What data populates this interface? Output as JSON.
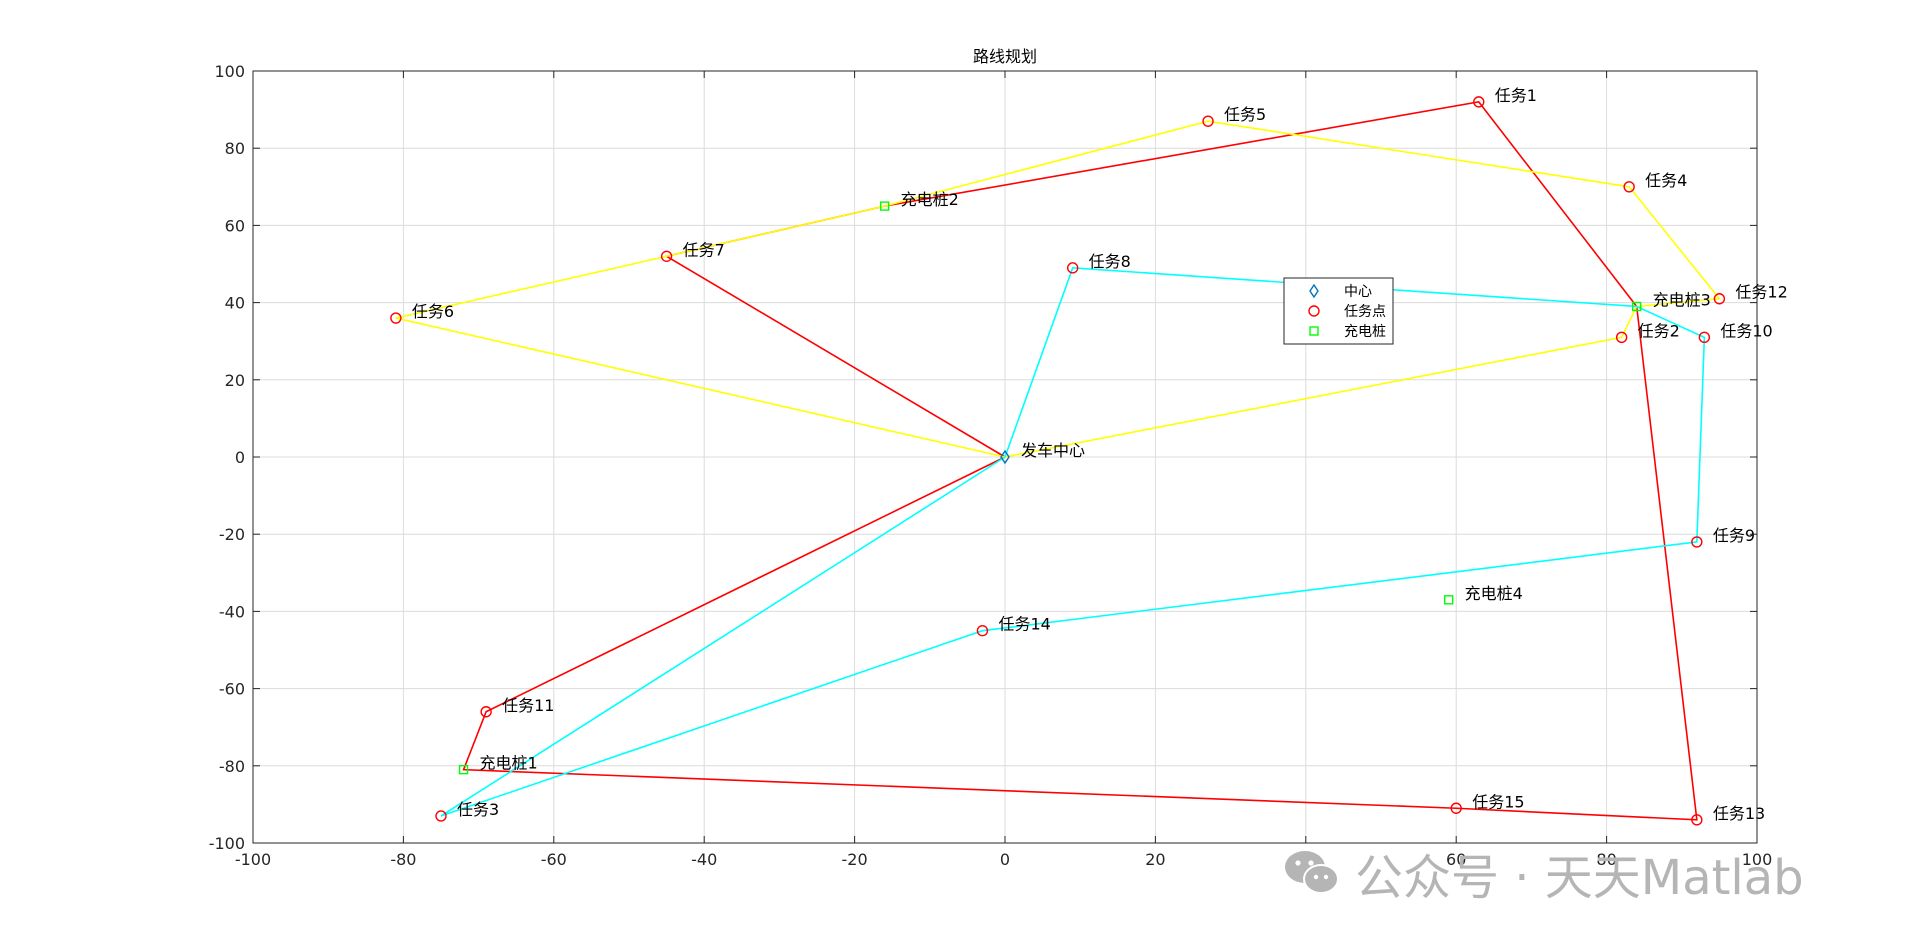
{
  "chart_data": {
    "type": "scatter",
    "title": "路线规划",
    "xlabel": "",
    "ylabel": "",
    "xlim": [
      -100,
      100
    ],
    "ylim": [
      -100,
      100
    ],
    "x_ticks": [
      -100,
      -80,
      -60,
      -40,
      -20,
      0,
      20,
      40,
      60,
      80,
      100
    ],
    "y_ticks": [
      -100,
      -80,
      -60,
      -40,
      -20,
      0,
      20,
      40,
      60,
      80,
      100
    ],
    "grid": true,
    "legend": {
      "placement": "center-right",
      "entries": [
        {
          "label": "中心",
          "marker": "diamond",
          "color": "#0072BD"
        },
        {
          "label": "任务点",
          "marker": "circle",
          "color": "#FF0000"
        },
        {
          "label": "充电桩",
          "marker": "square",
          "color": "#00FF00"
        }
      ]
    },
    "center": {
      "label": "发车中心",
      "x": 0,
      "y": 0
    },
    "tasks": [
      {
        "label": "任务1",
        "x": 63,
        "y": 92
      },
      {
        "label": "任务2",
        "x": 82,
        "y": 31
      },
      {
        "label": "任务3",
        "x": -75,
        "y": -93
      },
      {
        "label": "任务4",
        "x": 83,
        "y": 70
      },
      {
        "label": "任务5",
        "x": 27,
        "y": 87
      },
      {
        "label": "任务6",
        "x": -81,
        "y": 36
      },
      {
        "label": "任务7",
        "x": -45,
        "y": 52
      },
      {
        "label": "任务8",
        "x": 9,
        "y": 49
      },
      {
        "label": "任务9",
        "x": 92,
        "y": -22
      },
      {
        "label": "任务10",
        "x": 93,
        "y": 31
      },
      {
        "label": "任务11",
        "x": -69,
        "y": -66
      },
      {
        "label": "任务12",
        "x": 95,
        "y": 41
      },
      {
        "label": "任务13",
        "x": 92,
        "y": -94
      },
      {
        "label": "任务14",
        "x": -3,
        "y": -45
      },
      {
        "label": "任务15",
        "x": 60,
        "y": -91
      }
    ],
    "chargers": [
      {
        "label": "充电桩1",
        "x": -72,
        "y": -81
      },
      {
        "label": "充电桩2",
        "x": -16,
        "y": 65
      },
      {
        "label": "充电桩3",
        "x": 84,
        "y": 39
      },
      {
        "label": "充电桩4",
        "x": 59,
        "y": -37
      }
    ],
    "routes": [
      {
        "color": "#FF0000",
        "points": [
          [
            0,
            0
          ],
          [
            -69,
            -66
          ],
          [
            -72,
            -81
          ],
          [
            60,
            -91
          ],
          [
            92,
            -94
          ],
          [
            84,
            39
          ],
          [
            63,
            92
          ],
          [
            -16,
            65
          ],
          [
            -45,
            52
          ],
          [
            0,
            0
          ]
        ]
      },
      {
        "color": "#FFFF00",
        "points": [
          [
            0,
            0
          ],
          [
            82,
            31
          ],
          [
            84,
            39
          ],
          [
            95,
            41
          ],
          [
            83,
            70
          ],
          [
            27,
            87
          ],
          [
            -16,
            65
          ],
          [
            -45,
            52
          ],
          [
            -81,
            36
          ],
          [
            0,
            0
          ]
        ]
      },
      {
        "color": "#00FFFF",
        "points": [
          [
            0,
            0
          ],
          [
            9,
            49
          ],
          [
            84,
            39
          ],
          [
            93,
            31
          ],
          [
            92,
            -22
          ],
          [
            -3,
            -45
          ],
          [
            -75,
            -93
          ],
          [
            0,
            0
          ]
        ]
      }
    ]
  },
  "watermark": {
    "text": "公众号 · 天天Matlab",
    "icon": "wechat-icon"
  }
}
